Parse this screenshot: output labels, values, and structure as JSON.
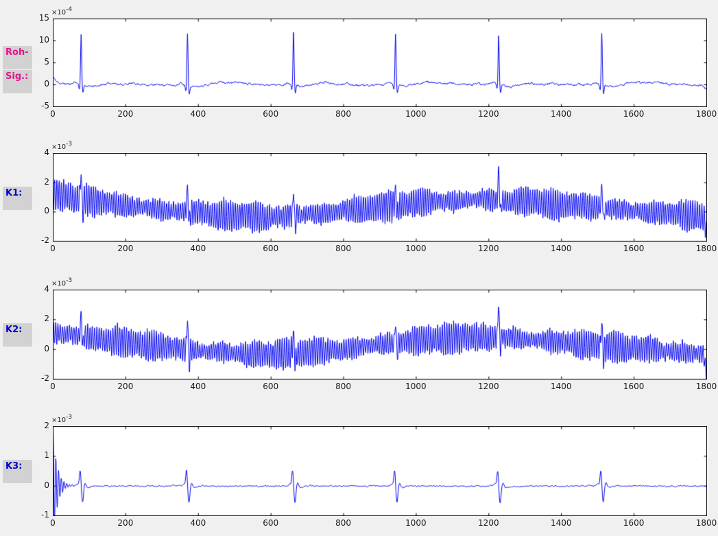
{
  "window": {
    "background": "#f0f0f0"
  },
  "sidebar": {
    "box_background": "#d2d2d2",
    "labels": [
      {
        "text": "Roh-",
        "color": "#e7128c"
      },
      {
        "text": "Sig.:",
        "color": "#e7128c"
      },
      {
        "text": "K1:",
        "color": "#0000cd"
      },
      {
        "text": "K2:",
        "color": "#0000cd"
      },
      {
        "text": "K3:",
        "color": "#0000cd"
      }
    ]
  },
  "chart_data": {
    "type": "line",
    "line_color": "#0000ee",
    "axis_color": "#000000",
    "tick_text_color": "#1a1a1a",
    "charts": [
      {
        "name": "roh-signal",
        "row_label": "Roh-Sig.:",
        "xlim": [
          0,
          1800
        ],
        "ylim": [
          -5,
          15
        ],
        "x_ticks": [
          "0",
          "200",
          "400",
          "600",
          "800",
          "1000",
          "1200",
          "1400",
          "1600",
          "1800"
        ],
        "y_ticks": [
          "15",
          "10",
          "5",
          "0",
          "-5"
        ],
        "exponent": {
          "base": "×10",
          "power": "-4"
        },
        "units_scale": "1e-4",
        "signal": {
          "kind": "raw_ecg",
          "seed": 11,
          "beats": [
            77,
            370,
            662,
            943,
            1227,
            1511
          ],
          "r_amplitudes": [
            11.5,
            12.2,
            12.3,
            11.6,
            11.4,
            12.0
          ],
          "q_amplitude": -1.25,
          "s_amplitude": -1.9,
          "p_amplitude": 0.5,
          "t_amplitude": 0.55,
          "start_value": 1.7,
          "end_value": -0.9,
          "noise_amplitude": 0.12
        }
      },
      {
        "name": "k1",
        "row_label": "K1:",
        "xlim": [
          0,
          1800
        ],
        "ylim": [
          -2,
          4
        ],
        "x_ticks": [
          "0",
          "200",
          "400",
          "600",
          "800",
          "1000",
          "1200",
          "1400",
          "1600",
          "1800"
        ],
        "y_ticks": [
          "4",
          "2",
          "0",
          "-2"
        ],
        "exponent": {
          "base": "×10",
          "power": "-3"
        },
        "units_scale": "1e-3",
        "signal": {
          "kind": "mains_noise_channel",
          "seed": 23,
          "beats": [
            77,
            370,
            662,
            943,
            1227,
            1511
          ],
          "spike_peaks": [
            2.6,
            1.9,
            1.25,
            1.7,
            3.0,
            1.8
          ],
          "oscillation_period": 6.3,
          "oscillation_amplitude": 0.78,
          "amplitude_modulation": 0.2,
          "noise_amplitude": 0.12,
          "end_dip": -1.1,
          "baseline_wander": [
            [
              0,
              1.15
            ],
            [
              150,
              0.6
            ],
            [
              300,
              0.15
            ],
            [
              450,
              -0.2
            ],
            [
              600,
              -0.35
            ],
            [
              750,
              -0.1
            ],
            [
              900,
              0.35
            ],
            [
              1050,
              0.7
            ],
            [
              1200,
              0.85
            ],
            [
              1350,
              0.6
            ],
            [
              1500,
              0.3
            ],
            [
              1650,
              0.0
            ],
            [
              1800,
              -0.35
            ]
          ]
        }
      },
      {
        "name": "k2",
        "row_label": "K2:",
        "xlim": [
          0,
          1800
        ],
        "ylim": [
          -2,
          4
        ],
        "x_ticks": [
          "0",
          "200",
          "400",
          "600",
          "800",
          "1000",
          "1200",
          "1400",
          "1600",
          "1800"
        ],
        "y_ticks": [
          "4",
          "2",
          "0",
          "-2"
        ],
        "exponent": {
          "base": "×10",
          "power": "-3"
        },
        "units_scale": "1e-3",
        "signal": {
          "kind": "mains_noise_channel",
          "seed": 57,
          "beats": [
            77,
            370,
            662,
            943,
            1227,
            1511
          ],
          "spike_peaks": [
            2.6,
            1.9,
            1.3,
            1.75,
            2.95,
            1.85
          ],
          "oscillation_period": 6.3,
          "oscillation_amplitude": 0.78,
          "amplitude_modulation": 0.2,
          "noise_amplitude": 0.12,
          "end_dip": -1.2,
          "baseline_wander": [
            [
              0,
              1.15
            ],
            [
              150,
              0.62
            ],
            [
              300,
              0.18
            ],
            [
              450,
              -0.18
            ],
            [
              600,
              -0.35
            ],
            [
              750,
              -0.12
            ],
            [
              900,
              0.35
            ],
            [
              1050,
              0.7
            ],
            [
              1200,
              0.85
            ],
            [
              1350,
              0.6
            ],
            [
              1500,
              0.28
            ],
            [
              1650,
              0.0
            ],
            [
              1800,
              -0.35
            ]
          ]
        }
      },
      {
        "name": "k3",
        "row_label": "K3:",
        "xlim": [
          0,
          1800
        ],
        "ylim": [
          -1,
          2
        ],
        "x_ticks": [
          "0",
          "200",
          "400",
          "600",
          "800",
          "1000",
          "1200",
          "1400",
          "1600",
          "1800"
        ],
        "y_ticks": [
          "2",
          "1",
          "0",
          "-1"
        ],
        "exponent": {
          "base": "×10",
          "power": "-3"
        },
        "units_scale": "1e-3",
        "signal": {
          "kind": "filtered_ecg",
          "seed": 91,
          "beats": [
            77,
            370,
            662,
            943,
            1227,
            1511
          ],
          "peak_amplitude": 0.52,
          "trough_amplitude": -0.56,
          "initial_transient": {
            "amplitude": 1.82,
            "decay": 12,
            "period": 7.5
          },
          "noise_amplitude": 0.02
        }
      }
    ]
  }
}
